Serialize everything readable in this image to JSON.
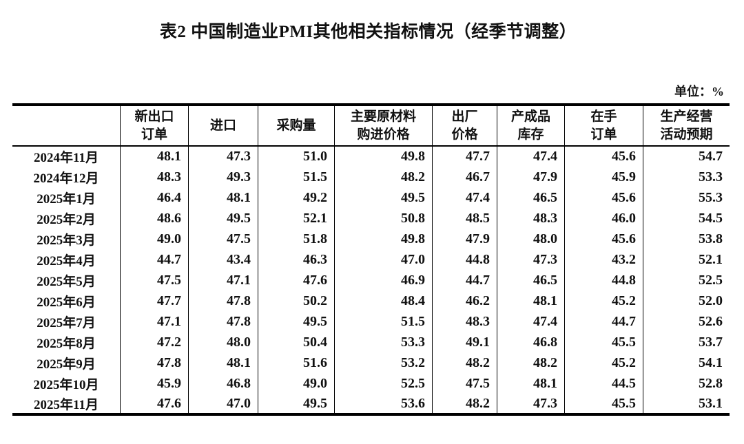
{
  "page": {
    "title": "表2 中国制造业PMI其他相关指标情况（经季节调整）",
    "unit_label": "单位：%"
  },
  "table": {
    "columns": [
      "",
      "新出口\n订单",
      "进口",
      "采购量",
      "主要原材料\n购进价格",
      "出厂\n价格",
      "产成品\n库存",
      "在手\n订单",
      "生产经营\n活动预期"
    ],
    "rows": [
      {
        "month": "2024年11月",
        "values": [
          "48.1",
          "47.3",
          "51.0",
          "49.8",
          "47.7",
          "47.4",
          "45.6",
          "54.7"
        ]
      },
      {
        "month": "2024年12月",
        "values": [
          "48.3",
          "49.3",
          "51.5",
          "48.2",
          "46.7",
          "47.9",
          "45.9",
          "53.3"
        ]
      },
      {
        "month": "2025年1月",
        "values": [
          "46.4",
          "48.1",
          "49.2",
          "49.5",
          "47.4",
          "46.5",
          "45.6",
          "55.3"
        ]
      },
      {
        "month": "2025年2月",
        "values": [
          "48.6",
          "49.5",
          "52.1",
          "50.8",
          "48.5",
          "48.3",
          "46.0",
          "54.5"
        ]
      },
      {
        "month": "2025年3月",
        "values": [
          "49.0",
          "47.5",
          "51.8",
          "49.8",
          "47.9",
          "48.0",
          "45.6",
          "53.8"
        ]
      },
      {
        "month": "2025年4月",
        "values": [
          "44.7",
          "43.4",
          "46.3",
          "47.0",
          "44.8",
          "47.3",
          "43.2",
          "52.1"
        ]
      },
      {
        "month": "2025年5月",
        "values": [
          "47.5",
          "47.1",
          "47.6",
          "46.9",
          "44.7",
          "46.5",
          "44.8",
          "52.5"
        ]
      },
      {
        "month": "2025年6月",
        "values": [
          "47.7",
          "47.8",
          "50.2",
          "48.4",
          "46.2",
          "48.1",
          "45.2",
          "52.0"
        ]
      },
      {
        "month": "2025年7月",
        "values": [
          "47.1",
          "47.8",
          "49.5",
          "51.5",
          "48.3",
          "47.4",
          "44.7",
          "52.6"
        ]
      },
      {
        "month": "2025年8月",
        "values": [
          "47.2",
          "48.0",
          "50.4",
          "53.3",
          "49.1",
          "46.8",
          "45.5",
          "53.7"
        ]
      },
      {
        "month": "2025年9月",
        "values": [
          "47.8",
          "48.1",
          "51.6",
          "53.2",
          "48.2",
          "48.2",
          "45.2",
          "54.1"
        ]
      },
      {
        "month": "2025年10月",
        "values": [
          "45.9",
          "46.8",
          "49.0",
          "52.5",
          "47.5",
          "48.1",
          "44.5",
          "52.8"
        ]
      },
      {
        "month": "2025年11月",
        "values": [
          "47.6",
          "47.0",
          "49.5",
          "53.6",
          "48.2",
          "47.3",
          "45.5",
          "53.1"
        ]
      }
    ]
  },
  "chart_data": {
    "type": "table",
    "title": "表2 中国制造业PMI其他相关指标情况（经季节调整）",
    "unit": "%",
    "categories": [
      "2024年11月",
      "2024年12月",
      "2025年1月",
      "2025年2月",
      "2025年3月",
      "2025年4月",
      "2025年5月",
      "2025年6月",
      "2025年7月",
      "2025年8月",
      "2025年9月",
      "2025年10月",
      "2025年11月"
    ],
    "series": [
      {
        "name": "新出口订单",
        "values": [
          48.1,
          48.3,
          46.4,
          48.6,
          49.0,
          44.7,
          47.5,
          47.7,
          47.1,
          47.2,
          47.8,
          45.9,
          47.6
        ]
      },
      {
        "name": "进口",
        "values": [
          47.3,
          49.3,
          48.1,
          49.5,
          47.5,
          43.4,
          47.1,
          47.8,
          47.8,
          48.0,
          48.1,
          46.8,
          47.0
        ]
      },
      {
        "name": "采购量",
        "values": [
          51.0,
          51.5,
          49.2,
          52.1,
          51.8,
          46.3,
          47.6,
          50.2,
          49.5,
          50.4,
          51.6,
          49.0,
          49.5
        ]
      },
      {
        "name": "主要原材料购进价格",
        "values": [
          49.8,
          48.2,
          49.5,
          50.8,
          49.8,
          47.0,
          46.9,
          48.4,
          51.5,
          53.3,
          53.2,
          52.5,
          53.6
        ]
      },
      {
        "name": "出厂价格",
        "values": [
          47.7,
          46.7,
          47.4,
          48.5,
          47.9,
          44.8,
          44.7,
          46.2,
          48.3,
          49.1,
          48.2,
          47.5,
          48.2
        ]
      },
      {
        "name": "产成品库存",
        "values": [
          47.4,
          47.9,
          46.5,
          48.3,
          48.0,
          47.3,
          46.5,
          48.1,
          47.4,
          46.8,
          48.2,
          48.1,
          47.3
        ]
      },
      {
        "name": "在手订单",
        "values": [
          45.6,
          45.9,
          45.6,
          46.0,
          45.6,
          43.2,
          44.8,
          45.2,
          44.7,
          45.5,
          45.2,
          44.5,
          45.5
        ]
      },
      {
        "name": "生产经营活动预期",
        "values": [
          54.7,
          53.3,
          55.3,
          54.5,
          53.8,
          52.1,
          52.5,
          52.0,
          52.6,
          53.7,
          54.1,
          52.8,
          53.1
        ]
      }
    ]
  }
}
